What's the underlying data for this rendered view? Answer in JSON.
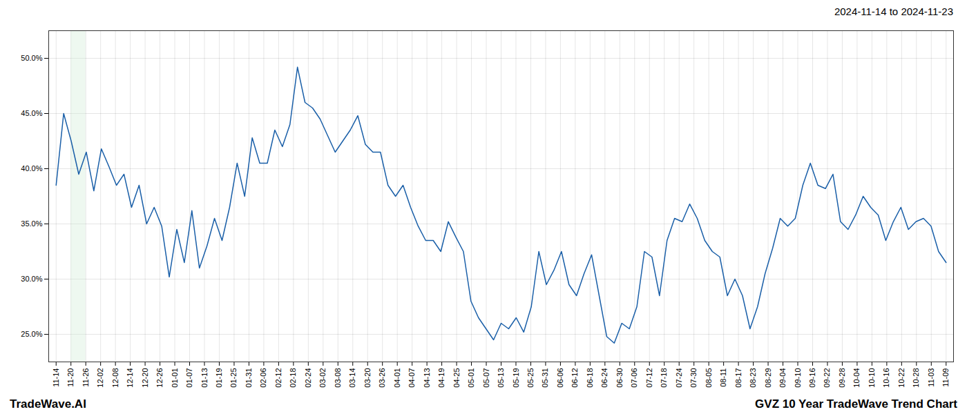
{
  "chart_data": {
    "type": "line",
    "title": "2024-11-14 to 2024-11-23",
    "footer_left": "TradeWave.AI",
    "footer_right": "GVZ 10 Year TradeWave Trend Chart",
    "color": "#ffffff",
    "grid": true,
    "series": [
      {
        "color": "#1a5fa8",
        "x": [
          0,
          0.5085,
          1.0169,
          1.5254,
          2.0339,
          2.5424,
          3.0508,
          3.5593,
          4.0678,
          4.5763,
          5.0847,
          5.5932,
          6.1017,
          6.6102,
          7.1186,
          7.6271,
          8.1356,
          8.6441,
          9.1525,
          9.661,
          10.1695,
          10.678,
          11.1864,
          11.6949,
          12.2034,
          12.7119,
          13.2203,
          13.7288,
          14.2373,
          14.7458,
          15.2542,
          15.7627,
          16.2712,
          16.7797,
          17.2881,
          17.7966,
          18.3051,
          18.8136,
          19.322,
          19.8305,
          20.339,
          20.8475,
          21.3559,
          21.8644,
          22.3729,
          22.8814,
          23.3898,
          23.8983,
          24.4068,
          24.9153,
          25.4237,
          25.9322,
          26.4407,
          26.9492,
          27.4576,
          27.9661,
          28.4746,
          28.9831,
          29.4915,
          30,
          30.5085,
          31.0169,
          31.5254,
          32.0339,
          32.5424,
          33.0508,
          33.5593,
          34.0678,
          34.5763,
          35.0847,
          35.5932,
          36.1017,
          36.6102,
          37.1186,
          37.6271,
          38.1356,
          38.6441,
          39.1525,
          39.661,
          40.1695,
          40.678,
          41.1864,
          41.6949,
          42.2034,
          42.7119,
          43.2203,
          43.7288,
          44.2373,
          44.7458,
          45.2542,
          45.7627,
          46.2712,
          46.7797,
          47.2881,
          47.7966,
          48.3051,
          48.8136,
          49.322,
          49.8305,
          50.339,
          50.8475,
          51.3559,
          51.8644,
          52.3729,
          52.8814,
          53.3898,
          53.8983,
          54.4068,
          54.9153,
          55.4237,
          55.9322,
          56.4407,
          56.9492,
          57.4576,
          57.9661,
          58.4746,
          58.9831,
          59.4915,
          60
        ],
        "values": [
          38.5,
          45.0,
          42.5,
          39.5,
          41.5,
          38.0,
          41.8,
          40.2,
          38.5,
          39.5,
          36.5,
          38.5,
          35.0,
          36.5,
          34.8,
          30.2,
          34.5,
          31.5,
          36.2,
          31.0,
          33.0,
          35.5,
          33.5,
          36.5,
          40.5,
          37.5,
          42.8,
          40.5,
          40.5,
          43.5,
          42.0,
          44.0,
          49.2,
          46.0,
          45.5,
          44.5,
          43.0,
          41.5,
          42.5,
          43.5,
          44.8,
          42.2,
          41.5,
          41.5,
          38.5,
          37.5,
          38.5,
          36.5,
          34.8,
          33.5,
          33.5,
          32.5,
          35.2,
          33.8,
          32.5,
          28.0,
          26.5,
          25.5,
          24.5,
          26.0,
          25.5,
          26.5,
          25.2,
          27.5,
          32.5,
          29.5,
          30.8,
          32.5,
          29.5,
          28.5,
          30.5,
          32.2,
          28.5,
          24.8,
          24.2,
          26.0,
          25.5,
          27.5,
          32.5,
          32.0,
          28.5,
          33.5,
          35.5,
          35.2,
          36.8,
          35.5,
          33.5,
          32.5,
          32.0,
          28.5,
          30.0,
          28.5,
          25.5,
          27.5,
          30.5,
          32.8,
          35.5,
          34.8,
          35.5,
          38.5,
          40.5,
          38.5,
          38.2,
          39.5,
          35.2,
          34.5,
          35.8,
          37.5,
          36.5,
          35.8,
          33.5,
          35.2,
          36.5,
          34.5,
          35.2,
          35.5,
          34.8,
          32.5,
          31.5
        ]
      }
    ],
    "shade": {
      "x": [
        1,
        2
      ],
      "color": "#d4edda"
    },
    "xlim": [
      -0.5,
      60.5
    ],
    "xticks": [
      {
        "value": 0,
        "label": "11-14"
      },
      {
        "value": 1,
        "label": "11-20"
      },
      {
        "value": 2,
        "label": "11-26"
      },
      {
        "value": 3,
        "label": "12-02"
      },
      {
        "value": 4,
        "label": "12-08"
      },
      {
        "value": 5,
        "label": "12-14"
      },
      {
        "value": 6,
        "label": "12-20"
      },
      {
        "value": 7,
        "label": "12-26"
      },
      {
        "value": 8,
        "label": "01-01"
      },
      {
        "value": 9,
        "label": "01-07"
      },
      {
        "value": 10,
        "label": "01-13"
      },
      {
        "value": 11,
        "label": "01-19"
      },
      {
        "value": 12,
        "label": "01-25"
      },
      {
        "value": 13,
        "label": "01-31"
      },
      {
        "value": 14,
        "label": "02-06"
      },
      {
        "value": 15,
        "label": "02-12"
      },
      {
        "value": 16,
        "label": "02-18"
      },
      {
        "value": 17,
        "label": "02-24"
      },
      {
        "value": 18,
        "label": "03-02"
      },
      {
        "value": 19,
        "label": "03-08"
      },
      {
        "value": 20,
        "label": "03-14"
      },
      {
        "value": 21,
        "label": "03-20"
      },
      {
        "value": 22,
        "label": "03-26"
      },
      {
        "value": 23,
        "label": "04-01"
      },
      {
        "value": 24,
        "label": "04-07"
      },
      {
        "value": 25,
        "label": "04-13"
      },
      {
        "value": 26,
        "label": "04-19"
      },
      {
        "value": 27,
        "label": "04-25"
      },
      {
        "value": 28,
        "label": "05-01"
      },
      {
        "value": 29,
        "label": "05-07"
      },
      {
        "value": 30,
        "label": "05-13"
      },
      {
        "value": 31,
        "label": "05-19"
      },
      {
        "value": 32,
        "label": "05-25"
      },
      {
        "value": 33,
        "label": "05-31"
      },
      {
        "value": 34,
        "label": "06-06"
      },
      {
        "value": 35,
        "label": "06-12"
      },
      {
        "value": 36,
        "label": "06-18"
      },
      {
        "value": 37,
        "label": "06-24"
      },
      {
        "value": 38,
        "label": "06-30"
      },
      {
        "value": 39,
        "label": "07-06"
      },
      {
        "value": 40,
        "label": "07-12"
      },
      {
        "value": 41,
        "label": "07-18"
      },
      {
        "value": 42,
        "label": "07-24"
      },
      {
        "value": 43,
        "label": "07-30"
      },
      {
        "value": 44,
        "label": "08-05"
      },
      {
        "value": 45,
        "label": "08-11"
      },
      {
        "value": 46,
        "label": "08-17"
      },
      {
        "value": 47,
        "label": "08-23"
      },
      {
        "value": 48,
        "label": "08-29"
      },
      {
        "value": 49,
        "label": "09-04"
      },
      {
        "value": 50,
        "label": "09-10"
      },
      {
        "value": 51,
        "label": "09-16"
      },
      {
        "value": 52,
        "label": "09-22"
      },
      {
        "value": 53,
        "label": "09-28"
      },
      {
        "value": 54,
        "label": "10-04"
      },
      {
        "value": 55,
        "label": "10-10"
      },
      {
        "value": 56,
        "label": "10-16"
      },
      {
        "value": 57,
        "label": "10-22"
      },
      {
        "value": 58,
        "label": "10-28"
      },
      {
        "value": 59,
        "label": "11-03"
      },
      {
        "value": 60,
        "label": "11-09"
      }
    ],
    "ylim": [
      22.5,
      52.5
    ],
    "yticks": [
      {
        "value": 25.0,
        "label": "25.0%"
      },
      {
        "value": 30.0,
        "label": "30.0%"
      },
      {
        "value": 35.0,
        "label": "35.0%"
      },
      {
        "value": 40.0,
        "label": "40.0%"
      },
      {
        "value": 45.0,
        "label": "45.0%"
      },
      {
        "value": 50.0,
        "label": "50.0%"
      }
    ]
  }
}
